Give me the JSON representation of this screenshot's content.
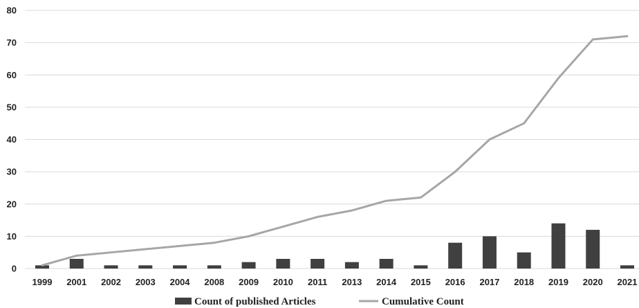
{
  "chart_data": {
    "type": "bar",
    "categories": [
      "1999",
      "2001",
      "2002",
      "2003",
      "2004",
      "2008",
      "2009",
      "2010",
      "2011",
      "2013",
      "2014",
      "2015",
      "2016",
      "2017",
      "2018",
      "2019",
      "2020",
      "2021"
    ],
    "series": [
      {
        "name": "Count of published Articles",
        "type": "bar",
        "color": "#404040",
        "values": [
          1,
          3,
          1,
          1,
          1,
          1,
          2,
          3,
          3,
          2,
          3,
          1,
          8,
          10,
          5,
          14,
          12,
          1
        ]
      },
      {
        "name": "Cumulative Count",
        "type": "line",
        "color": "#a6a6a6",
        "values": [
          1,
          4,
          5,
          6,
          7,
          8,
          10,
          13,
          16,
          18,
          21,
          22,
          30,
          40,
          45,
          59,
          71,
          72
        ]
      }
    ],
    "title": "",
    "xlabel": "",
    "ylabel": "",
    "ylim": [
      0,
      80
    ],
    "yticks": [
      0,
      10,
      20,
      30,
      40,
      50,
      60,
      70,
      80
    ],
    "grid": "horizontal",
    "legend": "bottom-center"
  }
}
